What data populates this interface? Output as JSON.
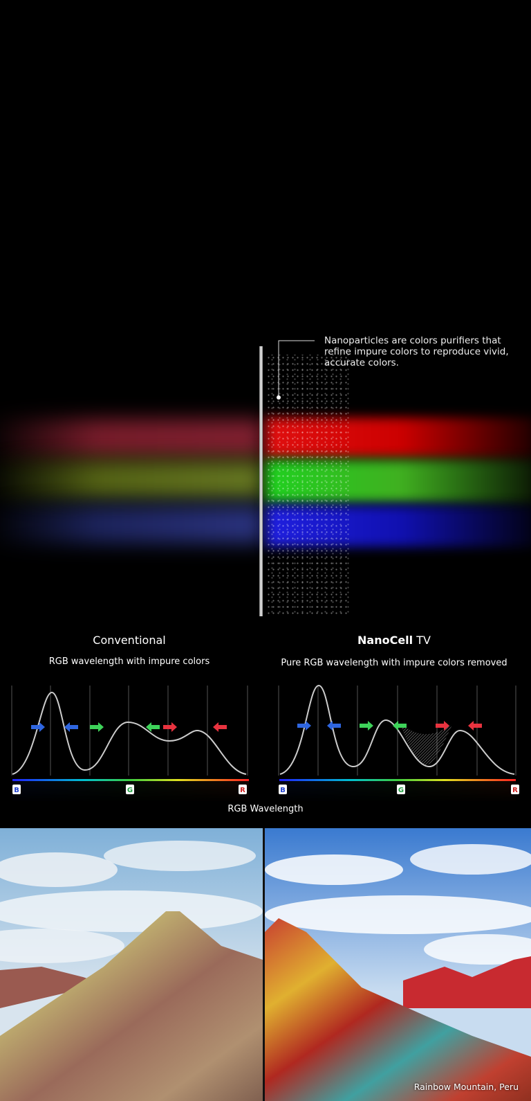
{
  "callout": {
    "text": "Nanoparticles are colors purifiers that refine impure colors to reproduce vivid, accurate colors."
  },
  "conventional": {
    "title": "Conventional",
    "subtitle": "RGB wavelength with impure colors"
  },
  "nanocell": {
    "title_bold": "NanoCell",
    "title_rest": " TV",
    "subtitle": "Pure RGB wavelength with impure colors removed"
  },
  "spectrum_labels": [
    "B",
    "G",
    "R"
  ],
  "axis_label": "RGB Wavelength",
  "photo_caption": "Rainbow Mountain, Peru",
  "colors": {
    "red": "#e8333f",
    "green": "#3ed35a",
    "blue": "#2f66e0",
    "background": "#000000"
  }
}
